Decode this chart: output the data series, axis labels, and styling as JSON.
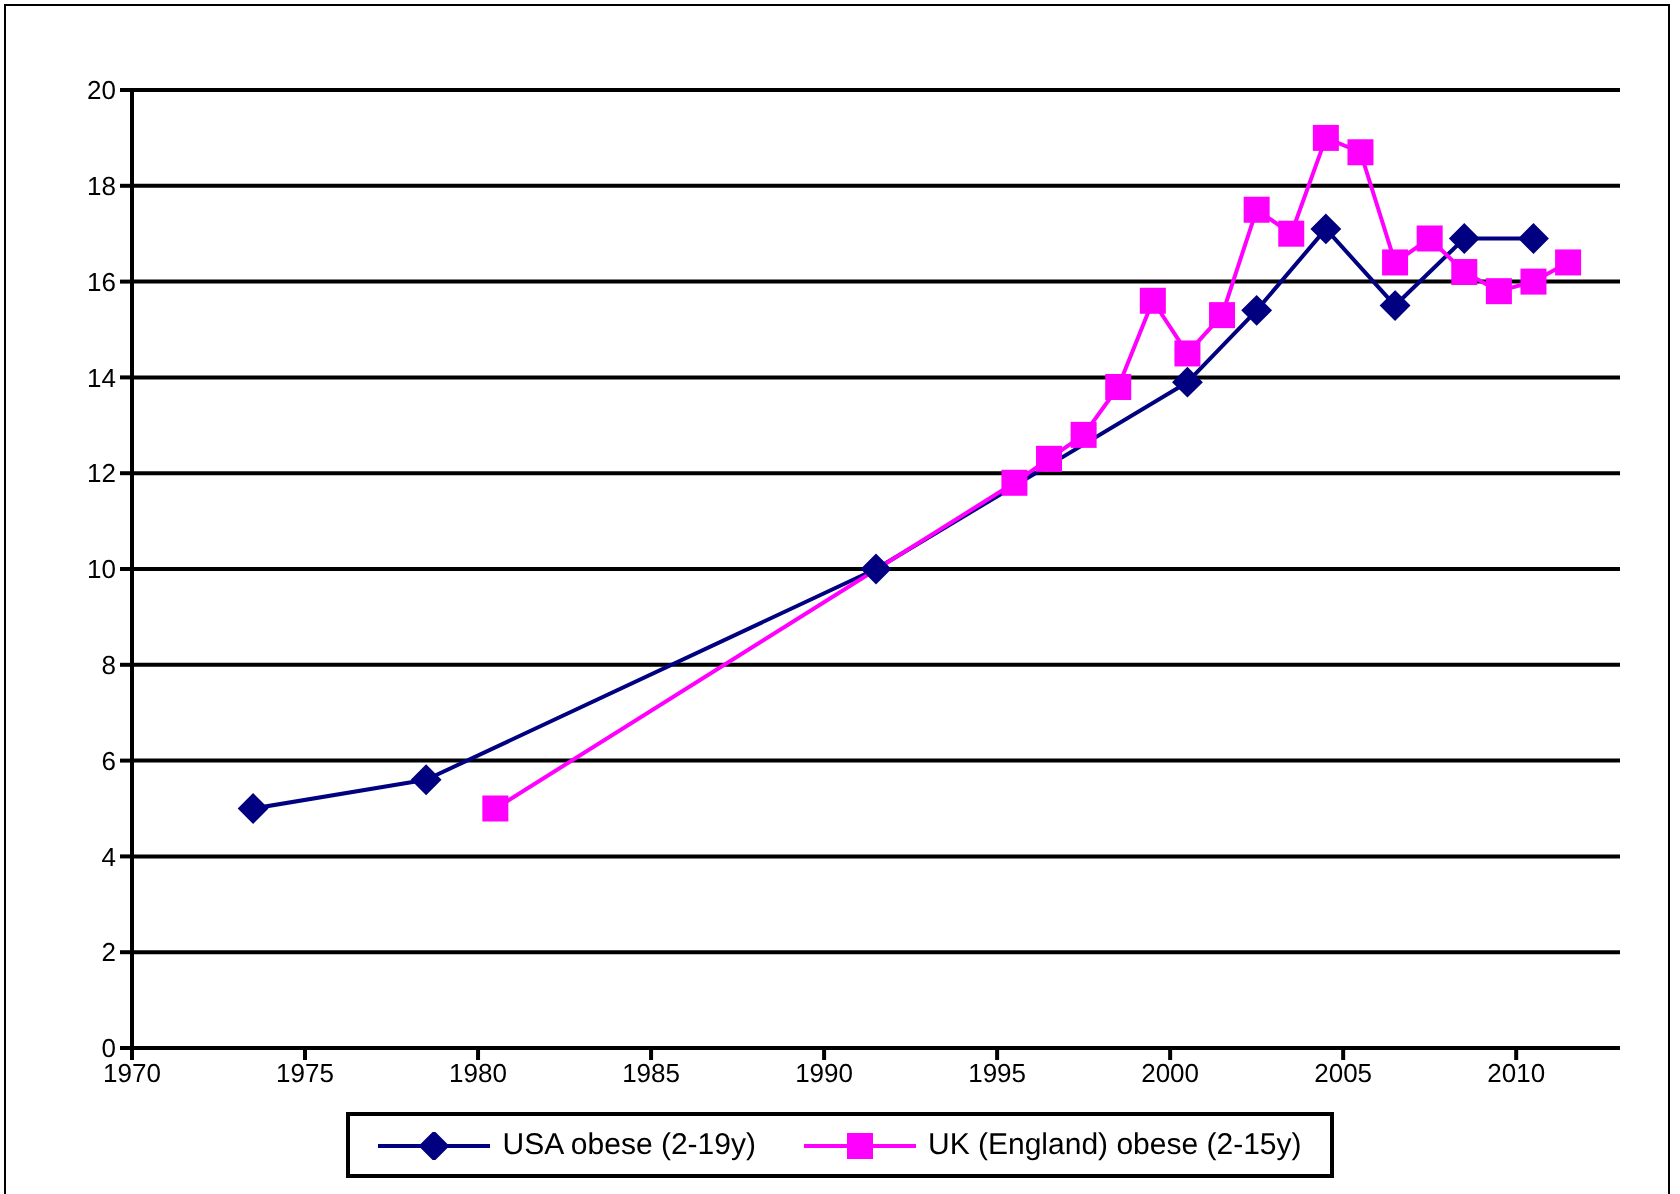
{
  "chart_data": {
    "type": "line",
    "xlim": [
      1970,
      2013
    ],
    "xticks": [
      1970,
      1975,
      1980,
      1985,
      1990,
      1995,
      2000,
      2005,
      2010
    ],
    "ylim": [
      0,
      20
    ],
    "yticks": [
      0,
      2,
      4,
      6,
      8,
      10,
      12,
      14,
      16,
      18,
      20
    ],
    "grid": "y",
    "legend": "bottom",
    "series": [
      {
        "name": "USA obese (2-19y)",
        "color": "#000080",
        "marker": "diamond",
        "x": [
          1973.5,
          1978.5,
          1991.5,
          2000.5,
          2002.5,
          2004.5,
          2006.5,
          2008.5,
          2010.5
        ],
        "values": [
          5.0,
          5.6,
          10.0,
          13.9,
          15.4,
          17.1,
          15.5,
          16.9,
          16.9
        ]
      },
      {
        "name": "UK (England) obese (2-15y)",
        "color": "#ff00ff",
        "marker": "square",
        "x": [
          1980.5,
          1995.5,
          1996.5,
          1997.5,
          1998.5,
          1999.5,
          2000.5,
          2001.5,
          2002.5,
          2003.5,
          2004.5,
          2005.5,
          2006.5,
          2007.5,
          2008.5,
          2009.5,
          2010.5,
          2011.5
        ],
        "values": [
          5.0,
          11.8,
          12.3,
          12.8,
          13.8,
          15.6,
          14.5,
          15.3,
          17.5,
          17.0,
          19.0,
          18.7,
          16.4,
          16.9,
          16.2,
          15.8,
          16.0,
          16.4
        ]
      }
    ]
  }
}
